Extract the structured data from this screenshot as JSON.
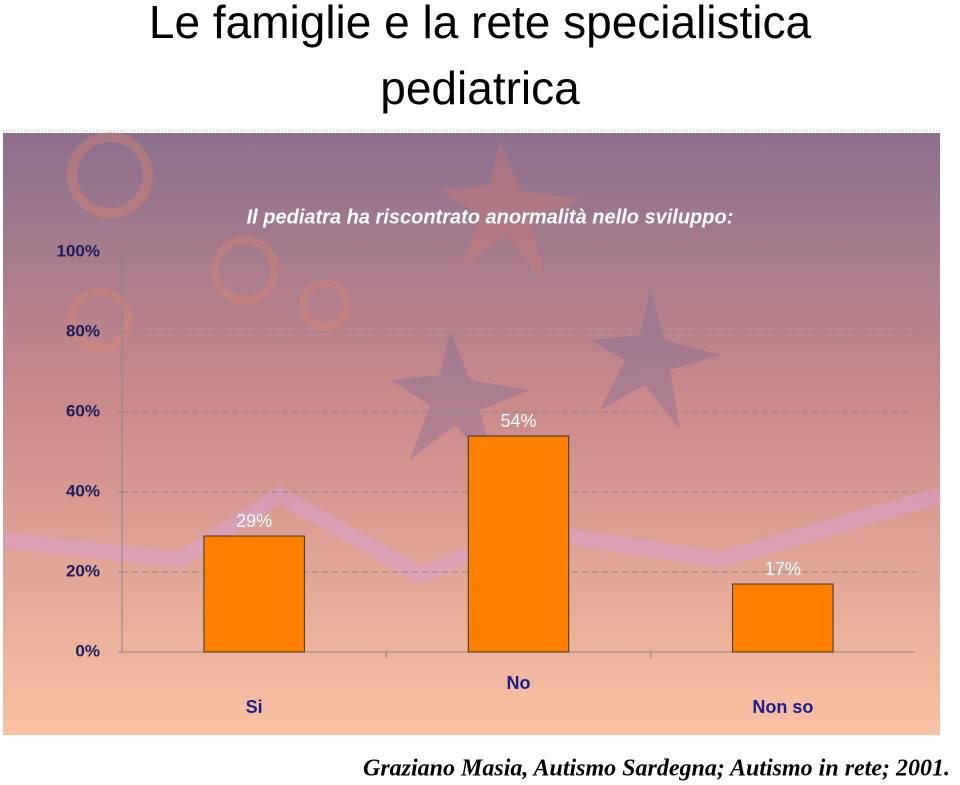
{
  "title": "Le famiglie e la rete specialistica pediatrica",
  "caption": "Graziano Masia, Autismo Sardegna; Autismo in rete; 2001.",
  "chart_data": {
    "type": "bar",
    "title": "Il pediatra ha riscontrato anormalità nello sviluppo:",
    "categories": [
      "Si",
      "No",
      "Non so"
    ],
    "values": [
      29,
      54,
      17
    ],
    "value_labels": [
      "29%",
      "54%",
      "17%"
    ],
    "color": "#ff7f00",
    "ylim": [
      0,
      100
    ],
    "yticks": [
      {
        "value": 0,
        "label": "0%"
      },
      {
        "value": 20,
        "label": "20%"
      },
      {
        "value": 40,
        "label": "40%"
      },
      {
        "value": 60,
        "label": "60%"
      },
      {
        "value": 80,
        "label": "80%"
      },
      {
        "value": 100,
        "label": "100%"
      }
    ],
    "grid": true
  }
}
